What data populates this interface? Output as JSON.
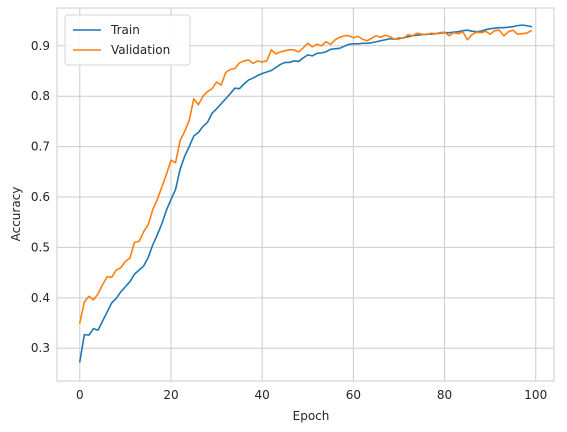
{
  "chart_data": {
    "type": "line",
    "title": "",
    "xlabel": "Epoch",
    "ylabel": "Accuracy",
    "xlim": [
      -5,
      104
    ],
    "ylim": [
      0.235,
      0.975
    ],
    "xticks": [
      0,
      20,
      40,
      60,
      80,
      100
    ],
    "yticks": [
      0.3,
      0.4,
      0.5,
      0.6,
      0.7,
      0.8,
      0.9
    ],
    "grid": true,
    "legend_position": "top-left",
    "series": [
      {
        "name": "Train",
        "color": "#1f77b4",
        "values": [
          0.273,
          0.327,
          0.326,
          0.339,
          0.336,
          0.354,
          0.372,
          0.39,
          0.399,
          0.412,
          0.422,
          0.432,
          0.447,
          0.455,
          0.463,
          0.48,
          0.505,
          0.525,
          0.547,
          0.574,
          0.595,
          0.615,
          0.655,
          0.681,
          0.7,
          0.721,
          0.728,
          0.74,
          0.748,
          0.766,
          0.775,
          0.785,
          0.795,
          0.805,
          0.816,
          0.815,
          0.824,
          0.832,
          0.836,
          0.841,
          0.845,
          0.848,
          0.851,
          0.857,
          0.863,
          0.867,
          0.867,
          0.87,
          0.869,
          0.876,
          0.882,
          0.88,
          0.885,
          0.886,
          0.888,
          0.893,
          0.894,
          0.895,
          0.899,
          0.903,
          0.904,
          0.904,
          0.905,
          0.905,
          0.906,
          0.908,
          0.91,
          0.912,
          0.914,
          0.913,
          0.914,
          0.916,
          0.918,
          0.92,
          0.921,
          0.922,
          0.923,
          0.923,
          0.924,
          0.925,
          0.926,
          0.926,
          0.927,
          0.928,
          0.93,
          0.931,
          0.929,
          0.928,
          0.929,
          0.932,
          0.934,
          0.935,
          0.936,
          0.936,
          0.937,
          0.938,
          0.94,
          0.941,
          0.94,
          0.938
        ]
      },
      {
        "name": "Validation",
        "color": "#ff7f0e",
        "values": [
          0.35,
          0.392,
          0.403,
          0.396,
          0.408,
          0.426,
          0.442,
          0.441,
          0.455,
          0.46,
          0.472,
          0.479,
          0.51,
          0.512,
          0.531,
          0.545,
          0.575,
          0.595,
          0.62,
          0.645,
          0.673,
          0.668,
          0.712,
          0.73,
          0.752,
          0.795,
          0.783,
          0.8,
          0.809,
          0.815,
          0.828,
          0.822,
          0.847,
          0.853,
          0.855,
          0.866,
          0.87,
          0.872,
          0.865,
          0.87,
          0.868,
          0.87,
          0.892,
          0.884,
          0.888,
          0.89,
          0.892,
          0.892,
          0.888,
          0.896,
          0.905,
          0.898,
          0.903,
          0.9,
          0.908,
          0.903,
          0.912,
          0.917,
          0.92,
          0.92,
          0.916,
          0.919,
          0.913,
          0.91,
          0.915,
          0.92,
          0.917,
          0.921,
          0.918,
          0.913,
          0.916,
          0.915,
          0.922,
          0.92,
          0.925,
          0.923,
          0.922,
          0.925,
          0.924,
          0.926,
          0.927,
          0.92,
          0.926,
          0.924,
          0.928,
          0.912,
          0.922,
          0.927,
          0.926,
          0.929,
          0.923,
          0.93,
          0.931,
          0.92,
          0.928,
          0.931,
          0.923,
          0.924,
          0.925,
          0.93
        ]
      }
    ]
  }
}
